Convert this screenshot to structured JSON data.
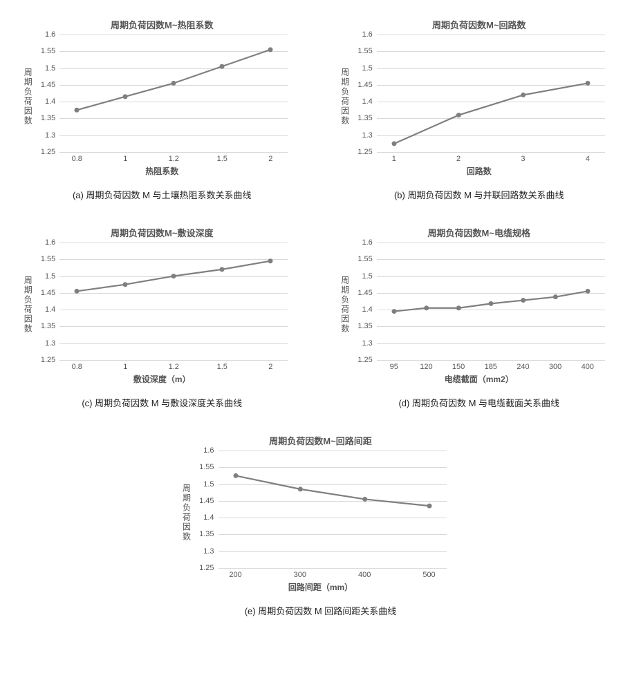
{
  "global": {
    "ylabel": "周期负荷因数",
    "ylim": [
      1.25,
      1.6
    ],
    "yticks": [
      1.25,
      1.3,
      1.35,
      1.4,
      1.45,
      1.5,
      1.55,
      1.6
    ],
    "line_color": "#7f7f7f",
    "marker_color": "#7f7f7f",
    "grid_color": "#d9d9d9",
    "bg_color": "#ffffff",
    "line_width": 2.2,
    "marker_radius": 3.5,
    "title_fontsize": 13,
    "label_fontsize": 12,
    "tick_fontsize": 11
  },
  "charts": [
    {
      "id": "a",
      "title": "周期负荷因数M~热阻系数",
      "caption": "(a)  周期负荷因数 M 与土壤热阻系数关系曲线",
      "xlabel": "热阻系数",
      "x": [
        0.8,
        1,
        1.2,
        1.5,
        2
      ],
      "y": [
        1.375,
        1.415,
        1.455,
        1.505,
        1.555
      ]
    },
    {
      "id": "b",
      "title": "周期负荷因数M~回路数",
      "caption": "(b)  周期负荷因数 M 与并联回路数关系曲线",
      "xlabel": "回路数",
      "x": [
        1,
        2,
        3,
        4
      ],
      "y": [
        1.275,
        1.36,
        1.42,
        1.455
      ]
    },
    {
      "id": "c",
      "title": "周期负荷因数M~敷设深度",
      "caption": "(c)  周期负荷因数 M 与敷设深度关系曲线",
      "xlabel": "敷设深度（m）",
      "x": [
        0.8,
        1,
        1.2,
        1.5,
        2
      ],
      "y": [
        1.455,
        1.475,
        1.5,
        1.52,
        1.545
      ]
    },
    {
      "id": "d",
      "title": "周期负荷因数M~电缆规格",
      "caption": "(d)  周期负荷因数 M 与电缆截面关系曲线",
      "xlabel": "电缆截面（mm2）",
      "x": [
        95,
        120,
        150,
        185,
        240,
        300,
        400
      ],
      "y": [
        1.395,
        1.405,
        1.405,
        1.418,
        1.428,
        1.438,
        1.455
      ]
    },
    {
      "id": "e",
      "title": "周期负荷因数M~回路间距",
      "caption": "(e)  周期负荷因数 M 回路间距关系曲线",
      "xlabel": "回路间距（mm）",
      "x": [
        200,
        300,
        400,
        500
      ],
      "y": [
        1.525,
        1.485,
        1.455,
        1.435
      ]
    }
  ]
}
